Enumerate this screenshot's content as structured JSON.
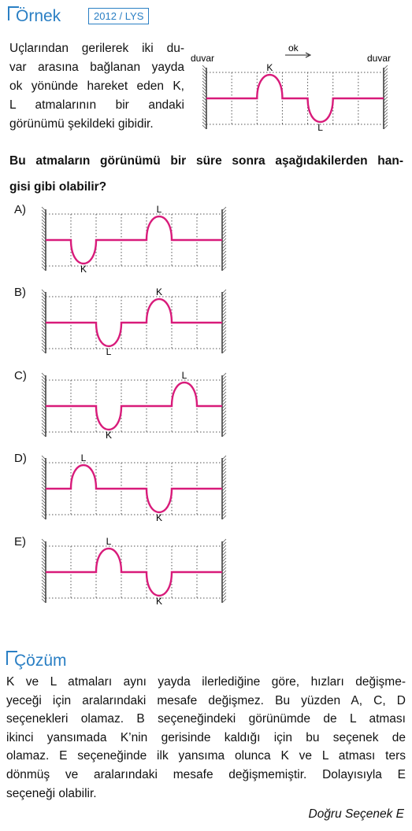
{
  "header": {
    "title": "Örnek",
    "tag": "2012 / LYS"
  },
  "question": {
    "lines": [
      "Uçlarından gerilerek iki du-",
      "var arasına bağlanan yayda",
      "ok yönünde hareket eden K,",
      "L atmalarının bir andaki",
      "görünümü şekildeki gibidir."
    ],
    "bold_lines": [
      "Bu atmaların görünümü bir süre sonra aşağıdakilerden han-",
      "gisi gibi olabilir?"
    ]
  },
  "figure": {
    "left_wall": "duvar",
    "right_wall": "duvar",
    "arrow": "ok",
    "k": "K",
    "l": "L"
  },
  "options": [
    {
      "label": "A)",
      "k": "K",
      "l": "L"
    },
    {
      "label": "B)",
      "k": "K",
      "l": "L"
    },
    {
      "label": "C)",
      "k": "K",
      "l": "L"
    },
    {
      "label": "D)",
      "k": "K",
      "l": "L"
    },
    {
      "label": "E)",
      "k": "K",
      "l": "L"
    }
  ],
  "solution": {
    "title": "Çözüm",
    "lines": [
      "K ve L atmaları aynı yayda ilerlediğine göre, hızları değişme-",
      "yeceği için aralarındaki mesafe değişmez. Bu yüzden A, C, D",
      "seçenekleri olamaz. B seçeneğindeki görünümde de L atması",
      "ikinci yansımada K’nin gerisinde kaldığı için bu seçenek de",
      "olamaz. E seçeneğinde ilk yansıma olunca K ve L atması ters",
      "dönmüş ve aralarındaki mesafe değişmemiştir. Dolayısıyla E",
      "seçeneği olabilir."
    ],
    "answer": "Doğru Seçenek E"
  }
}
